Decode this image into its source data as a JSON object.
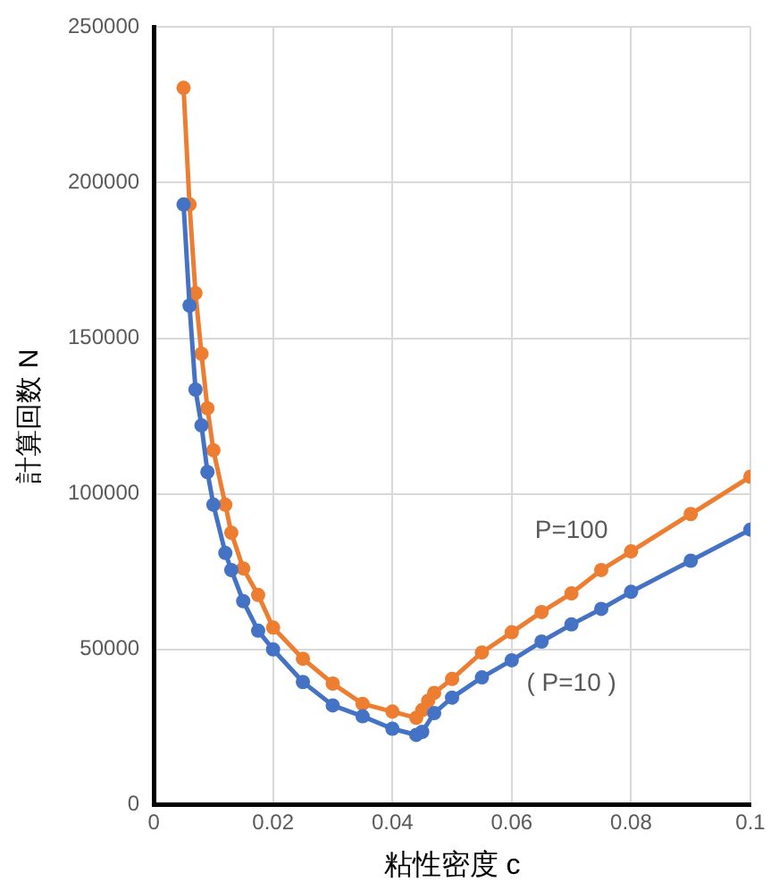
{
  "chart_data": {
    "type": "line",
    "xlabel": "粘性密度 c",
    "ylabel": "計算回数 N",
    "xlim": [
      0,
      0.1
    ],
    "xticks": [
      0,
      0.02,
      0.04,
      0.06,
      0.08,
      0.1
    ],
    "ylim": [
      0,
      250000
    ],
    "yticks": [
      0,
      50000,
      100000,
      150000,
      200000,
      250000
    ],
    "grid": true,
    "legend": false,
    "marker": "circle",
    "line_style": "solid",
    "series": [
      {
        "name": "( P=10 )",
        "color": "#4472c4",
        "x": [
          0.005,
          0.006,
          0.007,
          0.008,
          0.009,
          0.01,
          0.012,
          0.013,
          0.015,
          0.0175,
          0.02,
          0.025,
          0.03,
          0.035,
          0.04,
          0.044,
          0.045,
          0.047,
          0.05,
          0.055,
          0.06,
          0.065,
          0.07,
          0.075,
          0.08,
          0.09,
          0.1
        ],
        "values": [
          193000,
          160500,
          133500,
          122000,
          107000,
          96500,
          81000,
          75500,
          65500,
          56000,
          50000,
          39500,
          32000,
          28500,
          24500,
          22500,
          23500,
          29500,
          34500,
          41000,
          46500,
          52500,
          58000,
          63000,
          68500,
          78500,
          88500
        ]
      },
      {
        "name": "P=100",
        "color": "#ed7d31",
        "x": [
          0.005,
          0.006,
          0.007,
          0.008,
          0.009,
          0.01,
          0.012,
          0.013,
          0.015,
          0.0175,
          0.02,
          0.025,
          0.03,
          0.035,
          0.04,
          0.044,
          0.045,
          0.046,
          0.047,
          0.05,
          0.055,
          0.06,
          0.065,
          0.07,
          0.075,
          0.08,
          0.09,
          0.1
        ],
        "values": [
          230500,
          193000,
          164500,
          145000,
          127500,
          114000,
          96500,
          87500,
          76000,
          67500,
          57000,
          47000,
          39000,
          32500,
          30000,
          28000,
          30500,
          33500,
          36000,
          40500,
          49000,
          55500,
          62000,
          68000,
          75500,
          81500,
          93500,
          105500
        ]
      }
    ]
  }
}
